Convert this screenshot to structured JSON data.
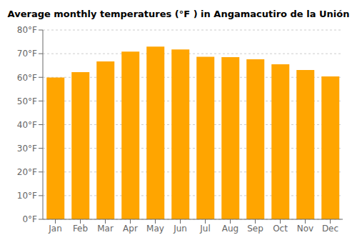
{
  "chart_data": {
    "type": "bar",
    "title": "Average monthly temperatures (°F ) in Angamacutiro de la Unión",
    "categories": [
      "Jan",
      "Feb",
      "Mar",
      "Apr",
      "May",
      "Jun",
      "Jul",
      "Aug",
      "Sep",
      "Oct",
      "Nov",
      "Dec"
    ],
    "values": [
      59.9,
      62.2,
      66.7,
      70.9,
      73.0,
      71.8,
      68.7,
      68.5,
      67.6,
      65.5,
      63.1,
      60.4
    ],
    "color": "#FFA500",
    "ylim": [
      0,
      80
    ],
    "yticks": [
      {
        "value": 0,
        "label": "0°F"
      },
      {
        "value": 10,
        "label": "10°F"
      },
      {
        "value": 20,
        "label": "20°F"
      },
      {
        "value": 30,
        "label": "30°F"
      },
      {
        "value": 40,
        "label": "40°F"
      },
      {
        "value": 50,
        "label": "50°F"
      },
      {
        "value": 60,
        "label": "60°F"
      },
      {
        "value": 70,
        "label": "70°F"
      },
      {
        "value": 80,
        "label": "80°F"
      }
    ],
    "grid": true
  }
}
